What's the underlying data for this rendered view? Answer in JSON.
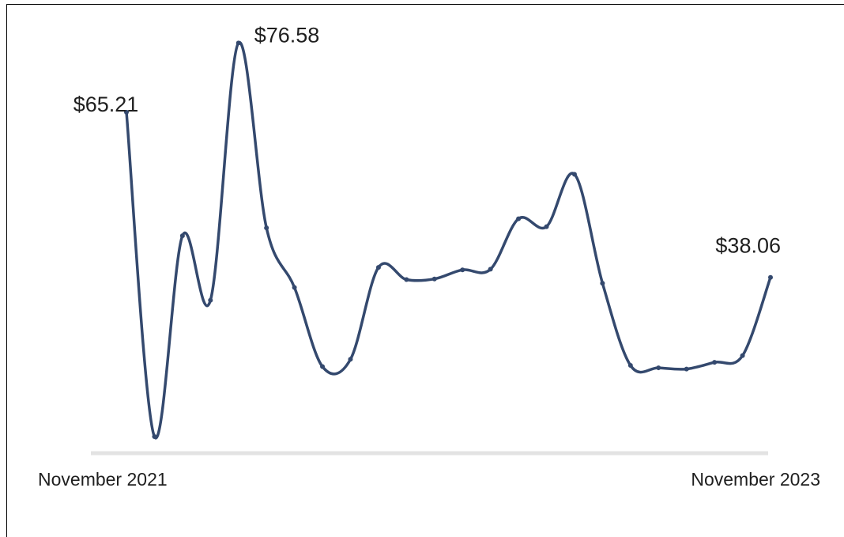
{
  "chart_data": {
    "type": "line",
    "title": "",
    "xlabel": "",
    "ylabel": "",
    "x_start_label": "November 2021",
    "x_end_label": "November 2023",
    "line_color": "#34496e",
    "axis_color": "#e3e3e3",
    "ylim": [
      11.9,
      77.8
    ],
    "series": [
      {
        "values": [
          65.21,
          11.9,
          44.9,
          34.3,
          76.58,
          46.2,
          36.4,
          23.4,
          24.6,
          39.7,
          37.7,
          37.8,
          39.3,
          39.4,
          47.7,
          46.4,
          55.0,
          37.1,
          23.6,
          23.2,
          23.0,
          24.1,
          25.2,
          38.06
        ]
      }
    ],
    "annotations": [
      {
        "index": 0,
        "label": "$65.21"
      },
      {
        "index": 4,
        "label": "$76.58"
      },
      {
        "index": 23,
        "label": "$38.06"
      }
    ]
  }
}
